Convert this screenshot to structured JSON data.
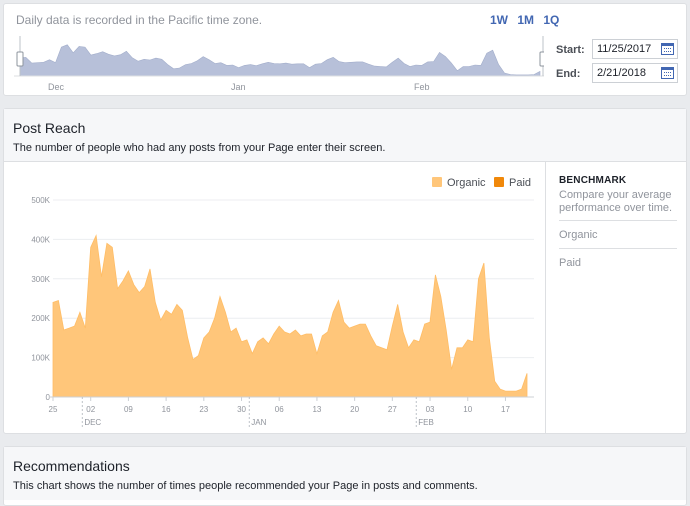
{
  "range": {
    "timezone_note": "Daily data is recorded in the Pacific time zone.",
    "presets": [
      "1W",
      "1M",
      "1Q"
    ],
    "months": [
      "Dec",
      "Jan",
      "Feb"
    ],
    "start_label": "Start:",
    "start_value": "11/25/2017",
    "end_label": "End:",
    "end_value": "2/21/2018"
  },
  "reach": {
    "title": "Post Reach",
    "description": "The number of people who had any posts from your Page enter their screen.",
    "legend": [
      {
        "label": "Organic",
        "color": "#ffc67a"
      },
      {
        "label": "Paid",
        "color": "#f0880a"
      }
    ],
    "benchmark": {
      "title": "BENCHMARK",
      "description": "Compare your average performance over time.",
      "items": [
        "Organic",
        "Paid"
      ]
    }
  },
  "recommendations": {
    "title": "Recommendations",
    "description": "This chart shows the number of times people recommended your Page in posts and comments."
  },
  "chart_data": {
    "type": "area",
    "title": "Post Reach",
    "y_ticks": [
      "0",
      "100K",
      "200K",
      "300K",
      "400K",
      "500K"
    ],
    "ylim": [
      0,
      500000
    ],
    "x_ticks": [
      "25",
      "02",
      "09",
      "16",
      "23",
      "30",
      "06",
      "13",
      "20",
      "27",
      "03",
      "10",
      "17"
    ],
    "month_labels": [
      "DEC",
      "JAN",
      "FEB"
    ],
    "series": [
      {
        "name": "Organic",
        "color": "#ffc67a",
        "start_date": "2017-11-25",
        "values": [
          240000,
          245000,
          170000,
          175000,
          180000,
          215000,
          175000,
          380000,
          410000,
          305000,
          390000,
          380000,
          275000,
          295000,
          320000,
          285000,
          265000,
          280000,
          325000,
          240000,
          195000,
          220000,
          210000,
          235000,
          220000,
          150000,
          95000,
          105000,
          150000,
          165000,
          200000,
          255000,
          215000,
          165000,
          175000,
          140000,
          145000,
          110000,
          140000,
          150000,
          135000,
          160000,
          180000,
          165000,
          160000,
          170000,
          155000,
          160000,
          160000,
          110000,
          155000,
          165000,
          215000,
          245000,
          190000,
          175000,
          180000,
          185000,
          185000,
          155000,
          130000,
          125000,
          120000,
          180000,
          235000,
          165000,
          125000,
          145000,
          140000,
          185000,
          190000,
          310000,
          255000,
          170000,
          70000,
          125000,
          125000,
          145000,
          140000,
          300000,
          340000,
          150000,
          40000,
          20000,
          15000,
          15000,
          15000,
          20000,
          60000
        ]
      },
      {
        "name": "Paid",
        "color": "#f0880a",
        "values": [
          0,
          0,
          0,
          0,
          0,
          0,
          0,
          0,
          0,
          0,
          0,
          0,
          0,
          0,
          0,
          0,
          0,
          0,
          0,
          0,
          0,
          0,
          0,
          0,
          0,
          0,
          0,
          0,
          0,
          0,
          0,
          0,
          0,
          0,
          0,
          0,
          0,
          0,
          0,
          0,
          0,
          0,
          0,
          0,
          0,
          0,
          0,
          0,
          0,
          0,
          0,
          0,
          0,
          0,
          0,
          0,
          0,
          0,
          0,
          0,
          0,
          0,
          0,
          0,
          0,
          0,
          0,
          0,
          0,
          0,
          0,
          0,
          0,
          0,
          0,
          0,
          0,
          0,
          0,
          0,
          0,
          0,
          0,
          0,
          0,
          0,
          0,
          0,
          0
        ]
      }
    ],
    "grid": true,
    "legend_position": "top-right"
  }
}
